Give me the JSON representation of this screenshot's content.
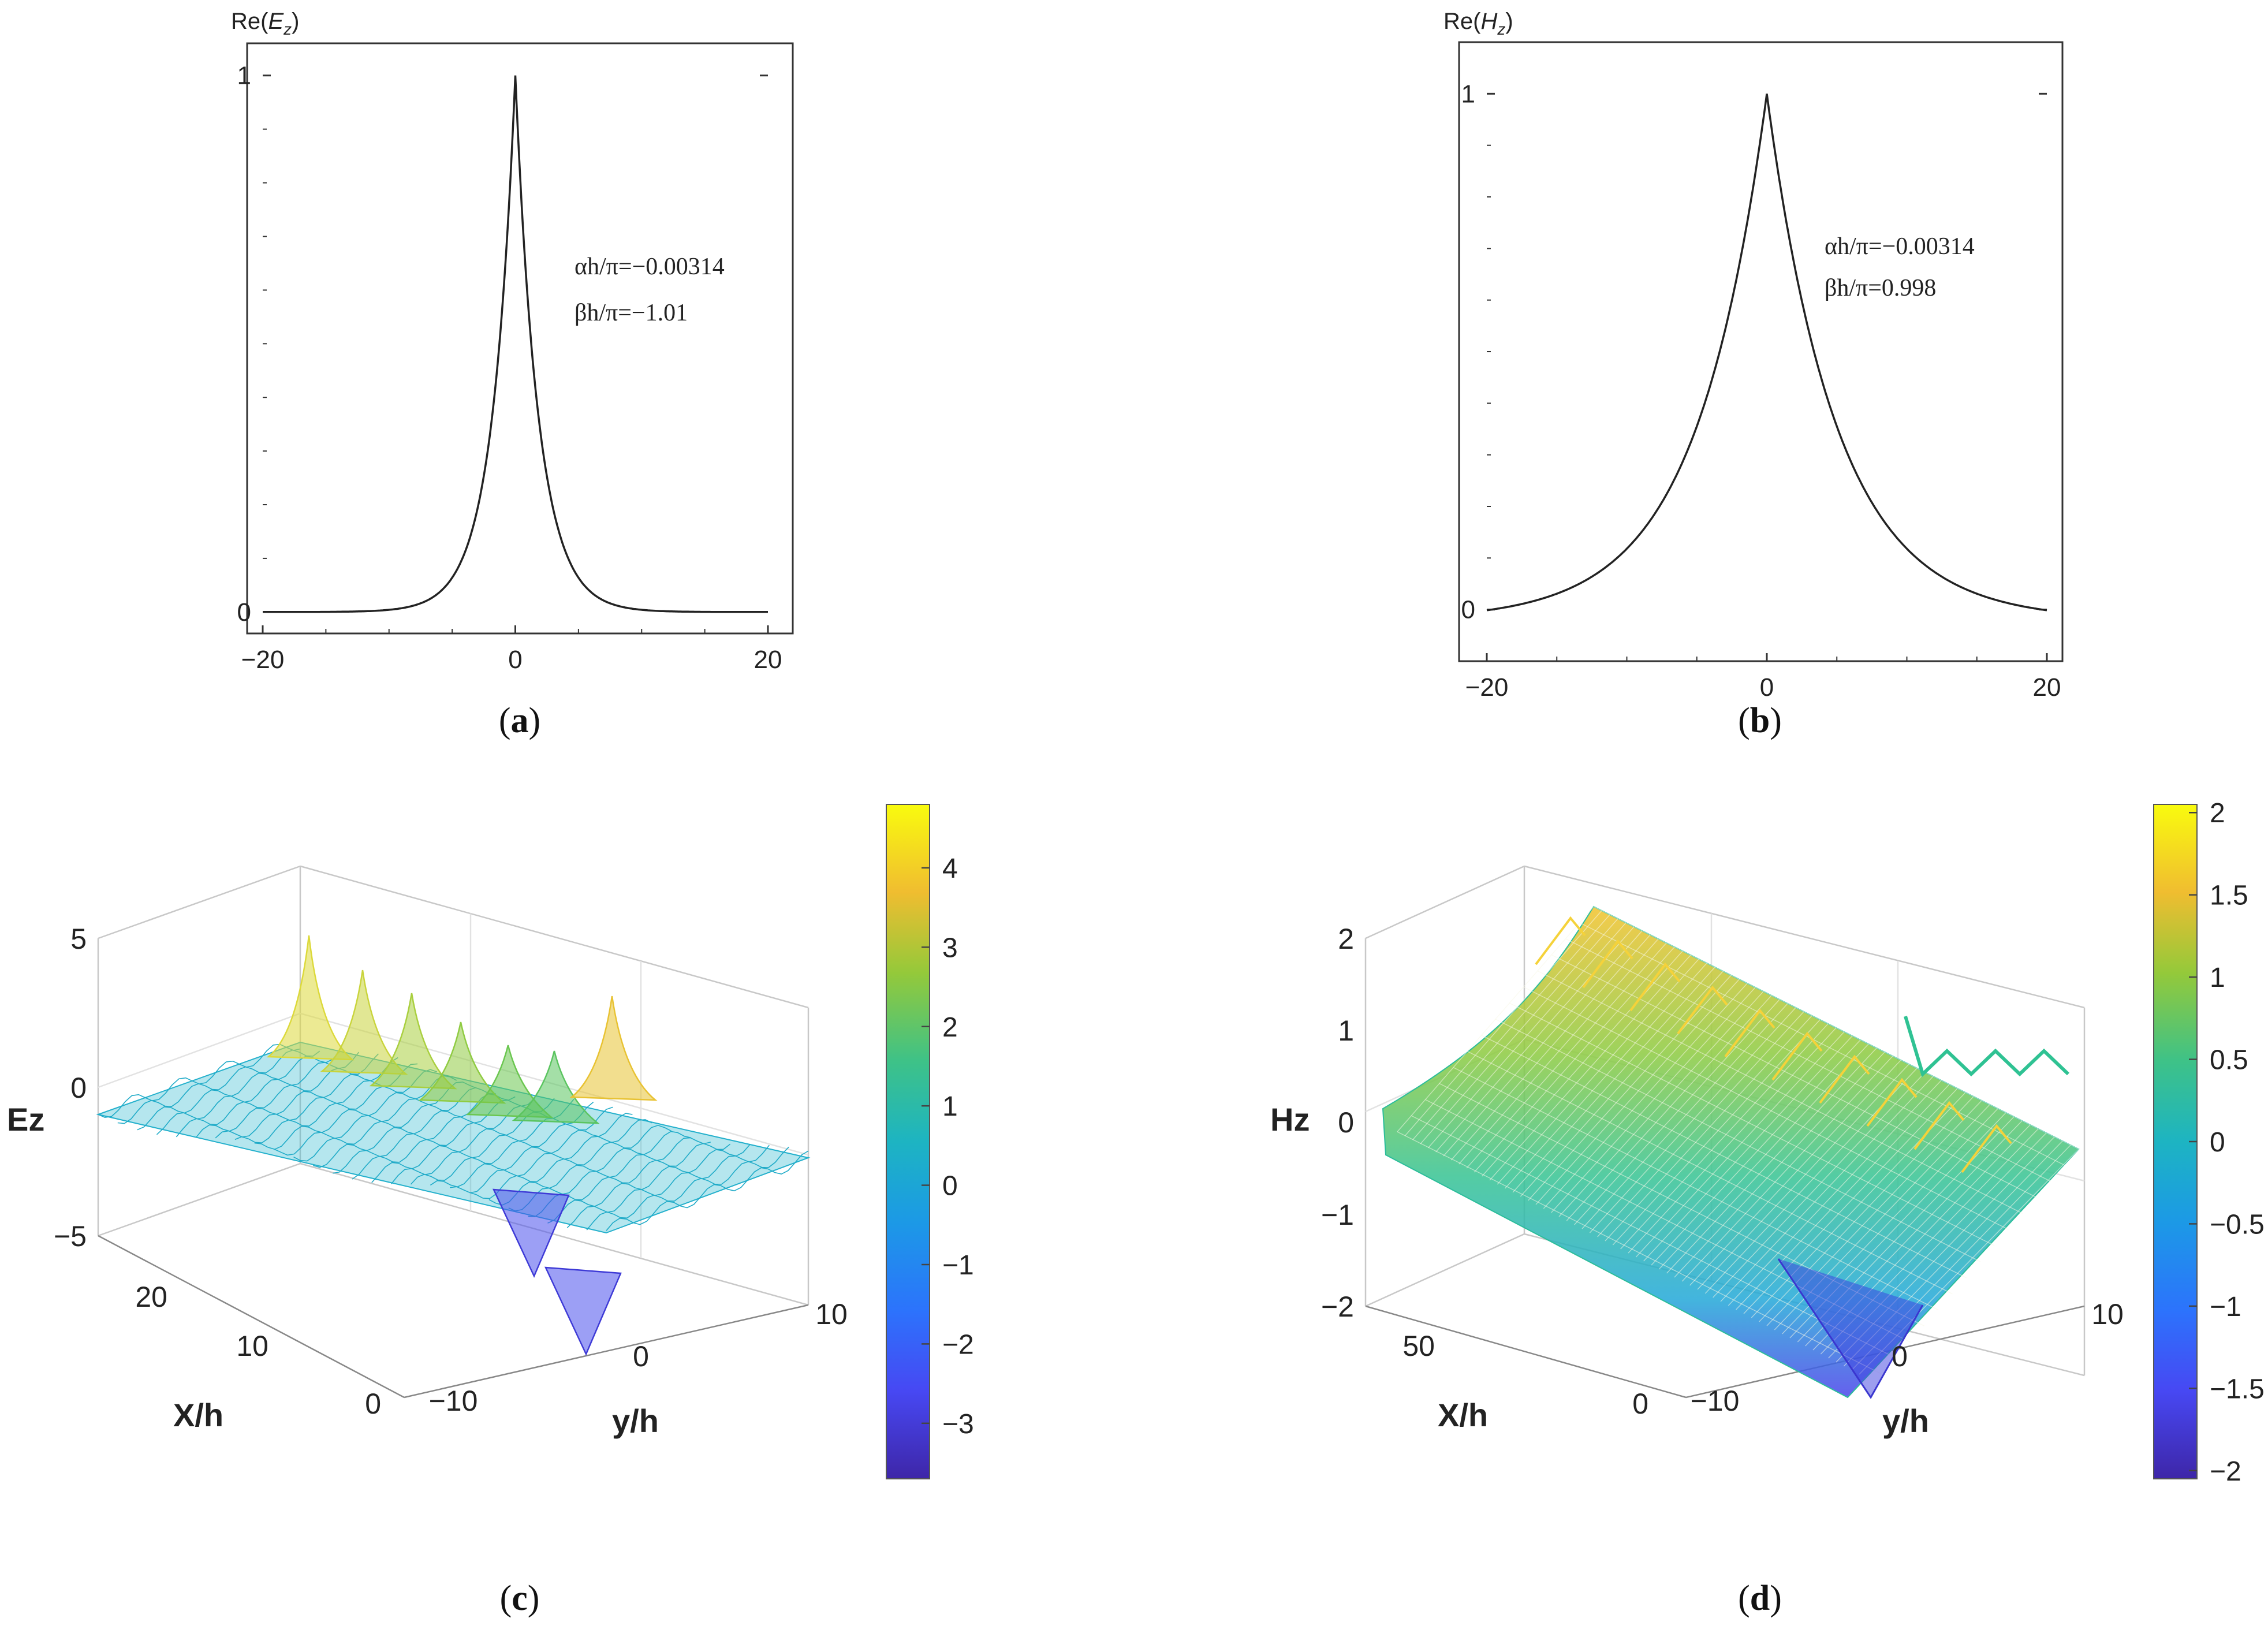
{
  "chart_data": [
    {
      "id": "a",
      "type": "line",
      "panel_label": "a",
      "ylabel_base": "Re(",
      "ylabel_sym": "E",
      "ylabel_sub": "z",
      "ylabel_end": ")",
      "x_ticks": [
        "−20",
        "0",
        "20"
      ],
      "y_ticks": [
        "0",
        "1"
      ],
      "xlim": [
        -20,
        20
      ],
      "ylim": [
        -0.04,
        1.06
      ],
      "decay": 0.55,
      "baseline": 0.0,
      "annotations": [
        "αh/π=−0.00314",
        "βh/π=−1.01"
      ]
    },
    {
      "id": "b",
      "type": "line",
      "panel_label": "b",
      "ylabel_base": "Re(",
      "ylabel_sym": "H",
      "ylabel_sub": "z",
      "ylabel_end": ")",
      "x_ticks": [
        "−20",
        "0",
        "20"
      ],
      "y_ticks": [
        "0",
        "1"
      ],
      "xlim": [
        -20,
        20
      ],
      "ylim": [
        -0.1,
        1.1
      ],
      "decay": 0.2,
      "baseline": -0.02,
      "annotations": [
        "αh/π=−0.00314",
        "βh/π=0.998"
      ]
    },
    {
      "id": "c",
      "type": "surface",
      "panel_label": "c",
      "zlabel": "Ez",
      "xlabel": "X/h",
      "ylabel": "y/h",
      "z_ticks": [
        "5",
        "0",
        "−5"
      ],
      "x_ticks": [
        "0",
        "10",
        "20"
      ],
      "y_ticks": [
        "−10",
        "0",
        "10"
      ],
      "colorbar_ticks": [
        "4",
        "3",
        "2",
        "1",
        "0",
        "−1",
        "−2",
        "−3"
      ],
      "colorbar_range": [
        -3.7,
        4.8
      ]
    },
    {
      "id": "d",
      "type": "surface",
      "panel_label": "d",
      "zlabel": "Hz",
      "xlabel": "X/h",
      "ylabel": "y/h",
      "z_ticks": [
        "2",
        "1",
        "0",
        "−1",
        "−2"
      ],
      "x_ticks": [
        "0",
        "50"
      ],
      "y_ticks": [
        "−10",
        "0",
        "10"
      ],
      "colorbar_ticks": [
        "2",
        "1.5",
        "1",
        "0.5",
        "0",
        "−0.5",
        "−1",
        "−1.5",
        "−2"
      ],
      "colorbar_range": [
        -2.05,
        2.05
      ]
    }
  ]
}
